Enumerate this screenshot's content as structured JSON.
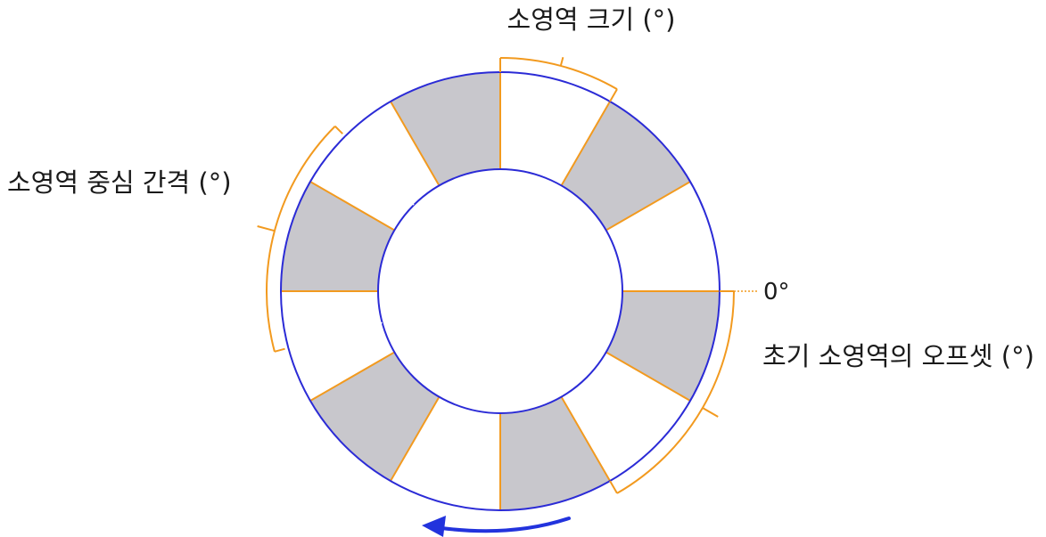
{
  "labels": {
    "sector_size": "소영역 크기 (°)",
    "sector_spacing": "소영역 중심 간격 (°)",
    "zero": "0°",
    "initial_offset": "초기 소영역의 오프셋 (°)"
  },
  "sectors": {
    "count": 6,
    "size_deg": 30,
    "spacing_deg": 60,
    "offset_deg": 60
  },
  "colors": {
    "ring": "#2b2bd6",
    "sector_fill": "#c8c7cc",
    "divider": "#f29a1f",
    "bracket": "#f29a1f",
    "arrow": "#2233dd",
    "center_line": "#ffffff"
  },
  "icons": {
    "direction_arrow": "counterclockwise-arrow-icon"
  }
}
